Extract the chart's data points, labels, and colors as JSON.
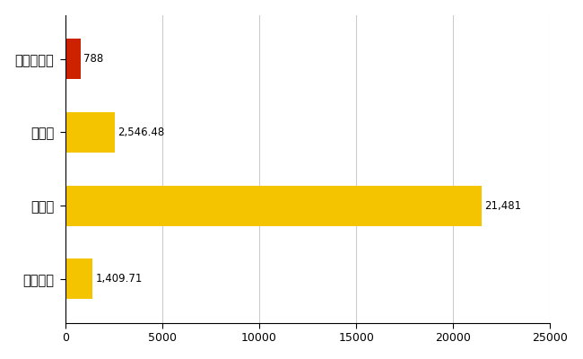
{
  "categories": [
    "安芸高田市",
    "県平均",
    "県最大",
    "全国平均"
  ],
  "values": [
    788,
    2546.48,
    21481,
    1409.71
  ],
  "bar_colors": [
    "#cc2200",
    "#f5c400",
    "#f5c400",
    "#f5c400"
  ],
  "value_labels": [
    "788",
    "2,546.48",
    "21,481",
    "1,409.71"
  ],
  "xlim": [
    0,
    25000
  ],
  "xticks": [
    0,
    5000,
    10000,
    15000,
    20000,
    25000
  ],
  "xtick_labels": [
    "0",
    "5000",
    "10000",
    "15000",
    "20000",
    "25000"
  ],
  "background_color": "#ffffff",
  "grid_color": "#cccccc",
  "bar_height": 0.55,
  "label_fontsize": 10.5,
  "tick_fontsize": 9,
  "value_fontsize": 8.5
}
